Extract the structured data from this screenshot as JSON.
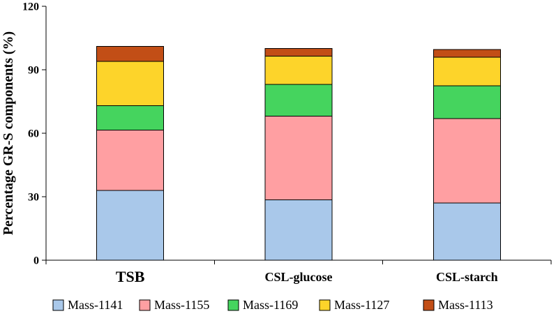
{
  "chart_data": {
    "type": "bar",
    "stacked": true,
    "categories": [
      "TSB",
      "CSL-glucose",
      "CSL-starch"
    ],
    "series": [
      {
        "name": "Mass-1141",
        "color": "#a9c8ea",
        "values": [
          33,
          28.5,
          27
        ]
      },
      {
        "name": "Mass-1155",
        "color": "#ff9fa2",
        "values": [
          28.5,
          39.5,
          40
        ]
      },
      {
        "name": "Mass-1169",
        "color": "#45d45e",
        "values": [
          11.5,
          15,
          15.5
        ]
      },
      {
        "name": "Mass-1127",
        "color": "#fdd42a",
        "values": [
          21,
          13.5,
          13.5
        ]
      },
      {
        "name": "Mass-1113",
        "color": "#c24e16",
        "values": [
          7,
          3.5,
          3.5
        ]
      }
    ],
    "ylabel": "Percentage GR-S components (%)",
    "xlabel": "",
    "title": "",
    "ylim": [
      0,
      120
    ],
    "yticks": [
      0,
      30,
      60,
      90,
      120
    ],
    "grid": false,
    "legend_position": "bottom"
  }
}
